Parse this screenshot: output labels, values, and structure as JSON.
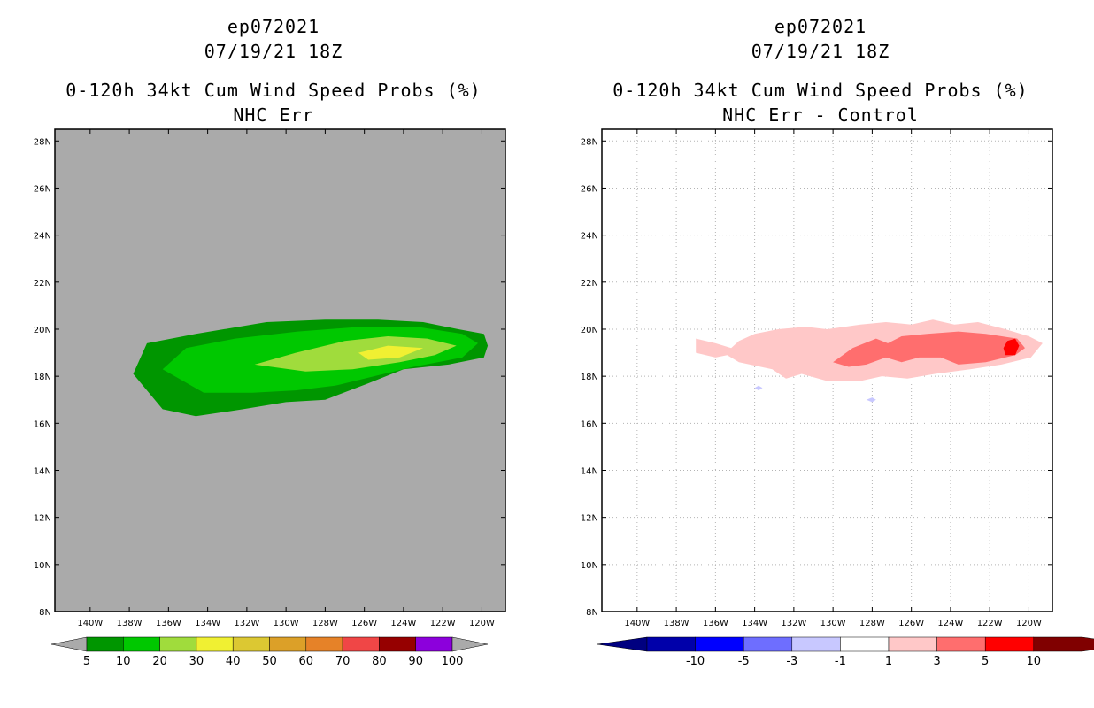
{
  "chart_data": [
    {
      "type": "heatmap",
      "storm_id": "ep072021",
      "datetime": "07/19/21 18Z",
      "title": "0-120h 34kt Cum Wind Speed Probs (%)",
      "subtitle": "NHC Err",
      "xlim": [
        -141.8,
        -118.8
      ],
      "ylim": [
        8,
        28.5
      ],
      "x_ticks": [
        -140,
        -138,
        -136,
        -134,
        -132,
        -130,
        -128,
        -126,
        -124,
        -122,
        -120
      ],
      "x_tick_labels": [
        "140W",
        "138W",
        "136W",
        "134W",
        "132W",
        "130W",
        "128W",
        "126W",
        "124W",
        "122W",
        "120W"
      ],
      "y_ticks": [
        8,
        10,
        12,
        14,
        16,
        18,
        20,
        22,
        24,
        26,
        28
      ],
      "y_tick_labels": [
        "8N",
        "10N",
        "12N",
        "14N",
        "16N",
        "18N",
        "20N",
        "22N",
        "24N",
        "26N",
        "28N"
      ],
      "grid": false,
      "background": "#aaaaaa",
      "contours": [
        {
          "level": 5,
          "color": "#009600",
          "points": [
            [
              -137.8,
              18.1
            ],
            [
              -137.1,
              19.4
            ],
            [
              -134.6,
              19.8
            ],
            [
              -131.0,
              20.3
            ],
            [
              -128.0,
              20.4
            ],
            [
              -125.3,
              20.4
            ],
            [
              -123.0,
              20.3
            ],
            [
              -121.2,
              20.0
            ],
            [
              -119.9,
              19.8
            ],
            [
              -119.7,
              19.3
            ],
            [
              -119.9,
              18.8
            ],
            [
              -121.7,
              18.5
            ],
            [
              -124.0,
              18.3
            ],
            [
              -125.8,
              17.7
            ],
            [
              -128.0,
              17.0
            ],
            [
              -130.0,
              16.9
            ],
            [
              -132.2,
              16.6
            ],
            [
              -134.6,
              16.3
            ],
            [
              -136.3,
              16.6
            ]
          ]
        },
        {
          "level": 10,
          "color": "#00c800",
          "points": [
            [
              -136.3,
              18.3
            ],
            [
              -135.1,
              19.2
            ],
            [
              -132.6,
              19.6
            ],
            [
              -129.4,
              19.9
            ],
            [
              -126.2,
              20.1
            ],
            [
              -123.3,
              20.1
            ],
            [
              -121.0,
              19.8
            ],
            [
              -120.2,
              19.4
            ],
            [
              -121.0,
              18.8
            ],
            [
              -123.5,
              18.4
            ],
            [
              -125.5,
              18.0
            ],
            [
              -127.5,
              17.6
            ],
            [
              -129.5,
              17.4
            ],
            [
              -131.7,
              17.3
            ],
            [
              -134.2,
              17.3
            ]
          ]
        },
        {
          "level": 20,
          "color": "#a0dc3c",
          "points": [
            [
              -131.6,
              18.5
            ],
            [
              -129.5,
              19.0
            ],
            [
              -127.0,
              19.5
            ],
            [
              -124.8,
              19.7
            ],
            [
              -122.8,
              19.6
            ],
            [
              -121.3,
              19.3
            ],
            [
              -122.4,
              18.9
            ],
            [
              -124.2,
              18.6
            ],
            [
              -126.6,
              18.3
            ],
            [
              -129.0,
              18.2
            ]
          ]
        },
        {
          "level": 30,
          "color": "#f0f032",
          "points": [
            [
              -126.3,
              19.0
            ],
            [
              -124.8,
              19.3
            ],
            [
              -123.0,
              19.2
            ],
            [
              -124.2,
              18.8
            ],
            [
              -125.8,
              18.7
            ]
          ]
        }
      ],
      "colorbar": {
        "levels": [
          "5",
          "10",
          "20",
          "30",
          "40",
          "50",
          "60",
          "70",
          "80",
          "90",
          "100"
        ],
        "colors": [
          "#009600",
          "#00c800",
          "#a0dc3c",
          "#f0f032",
          "#dcc832",
          "#dca028",
          "#e68228",
          "#f04646",
          "#960000",
          "#8c00dc"
        ],
        "under_color": "#aaaaaa",
        "over_color": "#aaaaaa"
      }
    },
    {
      "type": "heatmap",
      "storm_id": "ep072021",
      "datetime": "07/19/21 18Z",
      "title": "0-120h 34kt Cum Wind Speed Probs (%)",
      "subtitle": "NHC Err - Control",
      "xlim": [
        -141.8,
        -118.8
      ],
      "ylim": [
        8,
        28.5
      ],
      "x_ticks": [
        -140,
        -138,
        -136,
        -134,
        -132,
        -130,
        -128,
        -126,
        -124,
        -122,
        -120
      ],
      "x_tick_labels": [
        "140W",
        "138W",
        "136W",
        "134W",
        "132W",
        "130W",
        "128W",
        "126W",
        "124W",
        "122W",
        "120W"
      ],
      "y_ticks": [
        8,
        10,
        12,
        14,
        16,
        18,
        20,
        22,
        24,
        26,
        28
      ],
      "y_tick_labels": [
        "8N",
        "10N",
        "12N",
        "14N",
        "16N",
        "18N",
        "20N",
        "22N",
        "24N",
        "26N",
        "28N"
      ],
      "grid": true,
      "background": "#ffffff",
      "contours": [
        {
          "level": 1,
          "color": "#ffc8c8",
          "points": [
            [
              -137.0,
              19.6
            ],
            [
              -136.0,
              19.4
            ],
            [
              -135.2,
              19.2
            ],
            [
              -134.8,
              19.5
            ],
            [
              -134.0,
              19.8
            ],
            [
              -132.8,
              20.0
            ],
            [
              -131.4,
              20.1
            ],
            [
              -130.3,
              20.0
            ],
            [
              -128.6,
              20.2
            ],
            [
              -127.3,
              20.3
            ],
            [
              -126.0,
              20.2
            ],
            [
              -124.9,
              20.4
            ],
            [
              -123.8,
              20.2
            ],
            [
              -122.6,
              20.3
            ],
            [
              -121.2,
              20.0
            ],
            [
              -120.0,
              19.7
            ],
            [
              -119.3,
              19.4
            ],
            [
              -119.9,
              18.8
            ],
            [
              -121.4,
              18.5
            ],
            [
              -123.0,
              18.3
            ],
            [
              -124.8,
              18.1
            ],
            [
              -126.2,
              17.9
            ],
            [
              -127.5,
              18.0
            ],
            [
              -128.6,
              17.8
            ],
            [
              -130.3,
              17.8
            ],
            [
              -131.6,
              18.1
            ],
            [
              -132.4,
              17.9
            ],
            [
              -133.1,
              18.3
            ],
            [
              -134.8,
              18.6
            ],
            [
              -135.4,
              18.9
            ],
            [
              -136.0,
              18.8
            ],
            [
              -137.0,
              19.0
            ]
          ]
        },
        {
          "level": 3,
          "color": "#ff6e6e",
          "points": [
            [
              -130.0,
              18.6
            ],
            [
              -129.0,
              19.2
            ],
            [
              -127.8,
              19.6
            ],
            [
              -127.2,
              19.4
            ],
            [
              -126.5,
              19.7
            ],
            [
              -125.2,
              19.8
            ],
            [
              -123.6,
              19.9
            ],
            [
              -122.2,
              19.8
            ],
            [
              -120.6,
              19.6
            ],
            [
              -120.2,
              19.2
            ],
            [
              -120.7,
              18.9
            ],
            [
              -122.2,
              18.6
            ],
            [
              -123.6,
              18.5
            ],
            [
              -124.5,
              18.8
            ],
            [
              -125.6,
              18.8
            ],
            [
              -126.5,
              18.6
            ],
            [
              -127.3,
              18.8
            ],
            [
              -128.3,
              18.5
            ],
            [
              -129.2,
              18.4
            ]
          ]
        },
        {
          "level": 5,
          "color": "#ff0000",
          "points": [
            [
              -121.3,
              19.2
            ],
            [
              -121.1,
              19.5
            ],
            [
              -120.7,
              19.6
            ],
            [
              -120.5,
              19.3
            ],
            [
              -120.7,
              18.9
            ],
            [
              -121.2,
              18.9
            ]
          ]
        },
        {
          "level": -1,
          "color": "#c8c8ff",
          "points": [
            [
              -134.0,
              17.5
            ],
            [
              -133.8,
              17.6
            ],
            [
              -133.6,
              17.5
            ],
            [
              -133.8,
              17.4
            ]
          ]
        },
        {
          "level": -1,
          "color": "#c8c8ff",
          "points": [
            [
              -128.3,
              17.0
            ],
            [
              -128.0,
              17.1
            ],
            [
              -127.8,
              17.0
            ],
            [
              -128.0,
              16.9
            ]
          ]
        }
      ],
      "colorbar": {
        "levels": [
          "-10",
          "-5",
          "-3",
          "-1",
          "1",
          "3",
          "5",
          "10"
        ],
        "colors": [
          "#0000aa",
          "#0000ff",
          "#6e6eff",
          "#c8c8ff",
          "#ffffff",
          "#ffc8c8",
          "#ff6e6e",
          "#ff0000",
          "#800000"
        ],
        "under_color": "#000080",
        "over_color": "#800000"
      }
    }
  ]
}
